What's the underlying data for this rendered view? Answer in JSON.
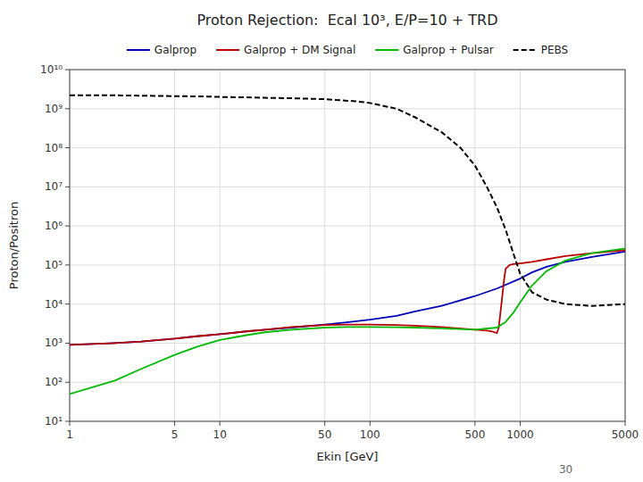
{
  "chart_data": {
    "type": "line",
    "title": "Proton Rejection:  Ecal 10³, E/P=10 + TRD",
    "x_label": "Ekin [GeV]",
    "y_label": "Proton/Positron",
    "annotations": [
      "30"
    ],
    "log": true,
    "grid": true,
    "legend": "top",
    "xlim": [
      1,
      5000
    ],
    "ylim": [
      10,
      10000000000.0
    ],
    "xticks": [
      1,
      5,
      10,
      50,
      100,
      500,
      1000,
      5000
    ],
    "yticks": [
      {
        "value": 10,
        "label": "10¹"
      },
      {
        "value": 100,
        "label": "10²"
      },
      {
        "value": 1000,
        "label": "10³"
      },
      {
        "value": 10000,
        "label": "10⁴"
      },
      {
        "value": 100000,
        "label": "10⁵"
      },
      {
        "value": 1000000,
        "label": "10⁶"
      },
      {
        "value": 10000000,
        "label": "10⁷"
      },
      {
        "value": 100000000,
        "label": "10⁸"
      },
      {
        "value": 1000000000,
        "label": "10⁹"
      },
      {
        "value": 10000000000,
        "label": "10¹⁰"
      }
    ],
    "series": [
      {
        "name": "Galprop",
        "color": "#0000bb",
        "line_style": "solid",
        "x": [
          1,
          2,
          3,
          5,
          7,
          10,
          15,
          20,
          30,
          50,
          70,
          100,
          150,
          200,
          300,
          500,
          700,
          1000,
          1200,
          1500,
          2000,
          3000,
          5000
        ],
        "values": [
          900,
          1000,
          1100,
          1300,
          1500,
          1700,
          2000,
          2200,
          2500,
          3000,
          3400,
          4000,
          5000,
          6500,
          9000,
          16000,
          25000,
          45000,
          65000,
          90000,
          120000,
          160000,
          220000
        ]
      },
      {
        "name": "Galprop + DM Signal",
        "color": "#bb0000",
        "line_style": "solid",
        "x": [
          1,
          2,
          3,
          5,
          7,
          10,
          15,
          20,
          30,
          50,
          70,
          100,
          150,
          200,
          300,
          500,
          600,
          650,
          700,
          720,
          750,
          780,
          800,
          850,
          900,
          1000,
          1200,
          1500,
          2000,
          3000,
          5000
        ],
        "values": [
          900,
          1000,
          1100,
          1300,
          1500,
          1700,
          2000,
          2200,
          2600,
          2900,
          3000,
          3000,
          2900,
          2800,
          2600,
          2200,
          2100,
          2000,
          1800,
          2500,
          10000,
          40000,
          80000,
          100000,
          105000,
          110000,
          120000,
          140000,
          170000,
          200000,
          240000
        ]
      },
      {
        "name": "Galprop + Pulsar",
        "color": "#00bb00",
        "line_style": "solid",
        "x": [
          1,
          2,
          3,
          5,
          7,
          10,
          15,
          20,
          30,
          50,
          70,
          100,
          150,
          200,
          300,
          500,
          700,
          800,
          900,
          1000,
          1200,
          1500,
          2000,
          3000,
          5000
        ],
        "values": [
          50,
          110,
          220,
          500,
          800,
          1200,
          1600,
          1900,
          2200,
          2500,
          2600,
          2600,
          2550,
          2500,
          2400,
          2200,
          2500,
          3500,
          6000,
          11000,
          30000,
          70000,
          130000,
          200000,
          265000
        ]
      },
      {
        "name": "PEBS",
        "color": "#000000",
        "line_style": "dashed",
        "x": [
          1,
          2,
          3,
          5,
          8,
          10,
          15,
          20,
          30,
          50,
          80,
          100,
          150,
          200,
          300,
          400,
          500,
          600,
          700,
          800,
          900,
          1000,
          1200,
          1500,
          2000,
          3000,
          5000
        ],
        "values": [
          2200000000,
          2200000000,
          2150000000,
          2100000000,
          2050000000,
          2000000000,
          1950000000,
          1900000000,
          1850000000,
          1750000000,
          1550000000,
          1400000000,
          1000000000,
          600000000,
          250000000,
          100000000,
          35000000,
          10000000,
          3000000,
          800000,
          200000,
          60000,
          20000,
          13000,
          10000,
          9000,
          10000
        ]
      }
    ]
  }
}
